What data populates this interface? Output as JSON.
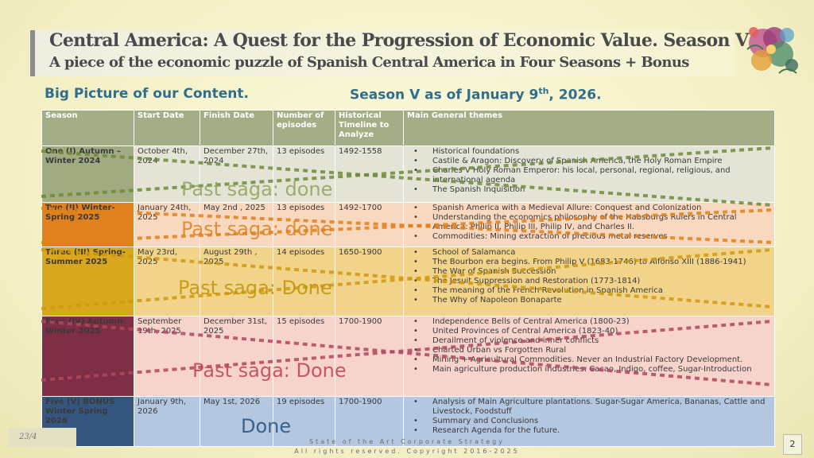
{
  "title": "Central America:  A Quest for the Progression of  Economic Value. Season V",
  "subtitle": "A piece of  the economic puzzle of Spanish Central America in Four Seasons + Bonus",
  "left_heading": "Big Picture of our Content.",
  "right_heading_pre": "Season V as of January 9",
  "right_heading_sup": "th",
  "right_heading_post": ", 2026.",
  "table": {
    "headers": [
      "Season",
      "Start Date",
      "Finish Date",
      "Number of episodes",
      "Historical Timeline to Analyze",
      "Main General themes"
    ],
    "rows": [
      {
        "season": "One  (I) Autumn –Winter 2024",
        "start": "October 4th, 2024",
        "finish": "December 27th, 2024",
        "episodes": "13 episodes",
        "timeline": "1492-1558",
        "themes": [
          "Historical foundations",
          "Castile & Aragon: Discovery of Spanish America, the Holy Roman Empire",
          "Charles V Holy Roman Emperor: his local, personal, regional, religious, and international agenda",
          "The Spanish Inquisition"
        ]
      },
      {
        "season": "Two  (II) Winter-Spring 2025",
        "start": "January 24th, 2025",
        "finish": "May 2nd , 2025",
        "episodes": "13 episodes",
        "timeline": "1492-1700",
        "themes": [
          "Spanish America with a Medieval Allure: Conquest and Colonization",
          "Understanding the economics  philosophy of the Habsburgs Rulers in Central America: Philip II, Philip III, Philip IV, and Charles II.",
          "Commodities: Mining extraction of precious metal reserves"
        ]
      },
      {
        "season": "Three  (III) Spring-Summer 2025",
        "start": "May 23rd, 2025",
        "finish": "August 29th , 2025",
        "episodes": "14 episodes",
        "timeline": "1650-1900",
        "themes": [
          "School of Salamanca",
          "The Bourbon era begins. From Philip V (1683-1746) to Alfonso XIII (1886-1941)",
          "The War of Spanish Succession",
          "The Jesuit Suppression and Restoration (1773-1814)",
          "The meaning of the French Revolution in Spanish America",
          "The Why of Napoleon Bonaparte"
        ]
      },
      {
        "season": "Four (IV) Autumn-Winter 2025",
        "start": "September 19th, 2025",
        "finish": "December 31st, 2025",
        "episodes": "15 episodes",
        "timeline": "1700-1900",
        "themes": [
          "Independence Bells of Central America (1800-23)",
          "United Provinces of Central America (1823-40)",
          "Derailment of violence and inner conflicts",
          "Charted Urban vs Forgotten Rural",
          "Mining + Agricultural Commodities. Never an Industrial Factory Development.",
          "Main agriculture production industries: Cacao, Indigo, coffee, Sugar-Introduction"
        ]
      },
      {
        "season": "Five (V) BONUS Winter Spring 2026",
        "start": "January 9th, 2026",
        "finish": "May 1st, 2026",
        "episodes": "19 episodes",
        "timeline": "1700-1900",
        "themes": [
          "Analysis of Main Agriculture plantations. Sugar-Sugar America, Bananas, Cattle and Livestock, Foodstuff",
          "Summary and Conclusions",
          "Research Agenda for the future."
        ]
      }
    ]
  },
  "stamps": {
    "s1": "Past saga: done",
    "s2": "Past saga: done",
    "s3": "Past saga: Done",
    "s4": "Past saga: Done",
    "s5": "Done"
  },
  "footer_line1": "State of the Art Corporate Strategy",
  "footer_line2": "All rights reserved. Copyright 2016-2025",
  "date_box": "23/4",
  "page_number": "2",
  "colors": {
    "header_green": "#a4ae86",
    "season1": "#a1ab82",
    "season2": "#e0811d",
    "season3": "#d8a71d",
    "season4": "#7f2f45",
    "season5": "#34567f",
    "heading_blue": "#2f6e8c"
  }
}
